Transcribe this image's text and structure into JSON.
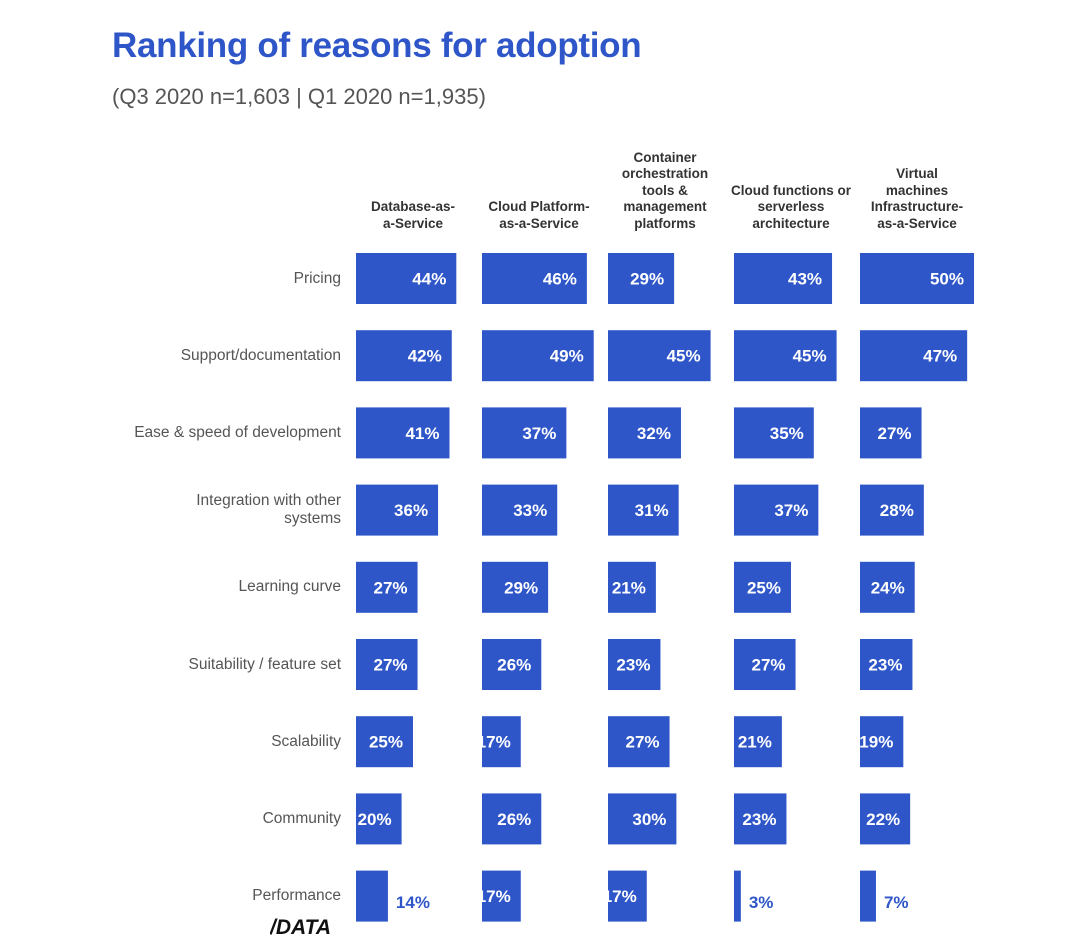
{
  "title": "Ranking of reasons for adoption",
  "subtitle": "(Q3 2020 n=1,603 | Q1 2020 n=1,935)",
  "logo_text": "/DATA",
  "colors": {
    "bar": "#2e56c8",
    "title": "#2e56c8",
    "label_inside": "#ffffff",
    "label_outside": "#2e56c8"
  },
  "chart_data": {
    "type": "bar",
    "title": "Ranking of reasons for adoption",
    "subtitle": "(Q3 2020 n=1,603 | Q1 2020 n=1,935)",
    "orientation": "horizontal",
    "layout": "small-multiples",
    "categories": [
      "Pricing",
      "Support/documentation",
      "Ease & speed of development",
      "Integration with other\nsystems",
      "Learning curve",
      "Suitability / feature set",
      "Scalability",
      "Community",
      "Performance"
    ],
    "series": [
      {
        "name": "Database-as-\na-Service",
        "values": [
          44,
          42,
          41,
          36,
          27,
          27,
          25,
          20,
          14
        ]
      },
      {
        "name": "Cloud Platform-\nas-a-Service",
        "values": [
          46,
          49,
          37,
          33,
          29,
          26,
          17,
          26,
          17
        ]
      },
      {
        "name": "Container\norchestration\ntools &\nmanagement\nplatforms",
        "values": [
          29,
          45,
          32,
          31,
          21,
          23,
          27,
          30,
          17
        ]
      },
      {
        "name": "Cloud functions or\nserverless\narchitecture",
        "values": [
          43,
          45,
          35,
          37,
          25,
          27,
          21,
          23,
          3
        ]
      },
      {
        "name": "Virtual\nmachines\nInfrastructure-\nas-a-Service",
        "values": [
          50,
          47,
          27,
          28,
          24,
          23,
          19,
          22,
          7
        ]
      }
    ],
    "value_suffix": "%",
    "xlim": [
      0,
      50
    ],
    "legend": "none",
    "grid": false
  }
}
